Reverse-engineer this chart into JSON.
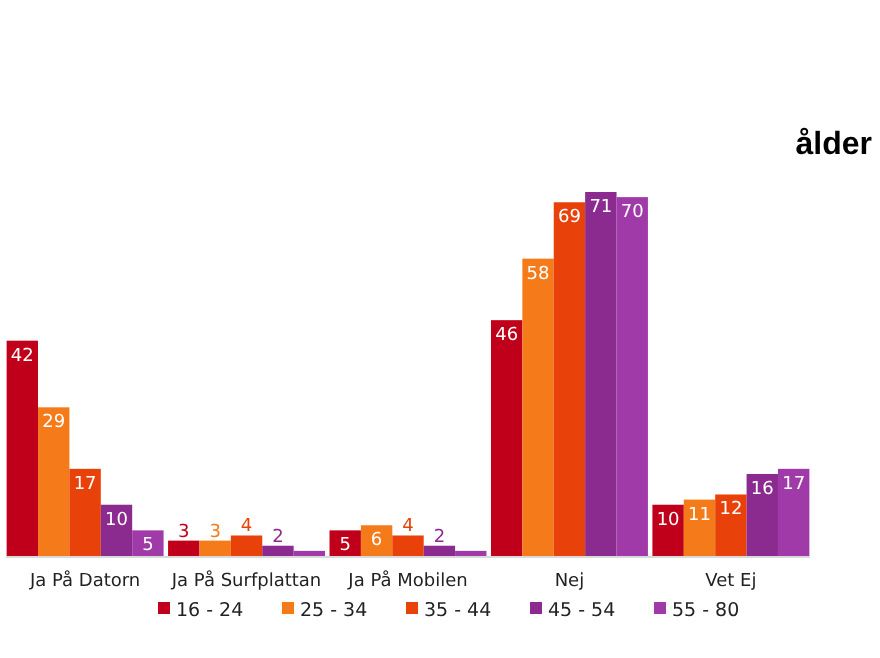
{
  "chart_data": {
    "type": "bar",
    "title": "ålder",
    "categories": [
      "Ja På Datorn",
      "Ja På Surfplattan",
      "Ja På Mobilen",
      "Nej",
      "Vet Ej"
    ],
    "series": [
      {
        "name": "16 - 24",
        "color": "#c0001a",
        "values": [
          42,
          3,
          5,
          46,
          10
        ],
        "value_labels": [
          "42",
          "3",
          "5",
          "46",
          "10"
        ]
      },
      {
        "name": "25 - 34",
        "color": "#f57a1a",
        "values": [
          29,
          3,
          6,
          58,
          11
        ],
        "value_labels": [
          "29",
          "3",
          "6",
          "58",
          "11"
        ]
      },
      {
        "name": "35 - 44",
        "color": "#e8420a",
        "values": [
          17,
          4,
          4,
          69,
          12
        ],
        "value_labels": [
          "17",
          "4",
          "4",
          "69",
          "12"
        ]
      },
      {
        "name": "45 - 54",
        "color": "#8b2a8f",
        "values": [
          10,
          2,
          2,
          71,
          16
        ],
        "value_labels": [
          "10",
          "2",
          "2",
          "71",
          "16"
        ]
      },
      {
        "name": "55 - 80",
        "color": "#a03aa8",
        "values": [
          5,
          1,
          1,
          70,
          17
        ],
        "value_labels": [
          "5",
          null,
          null,
          "70",
          "17"
        ]
      }
    ],
    "legend": "bottom"
  }
}
